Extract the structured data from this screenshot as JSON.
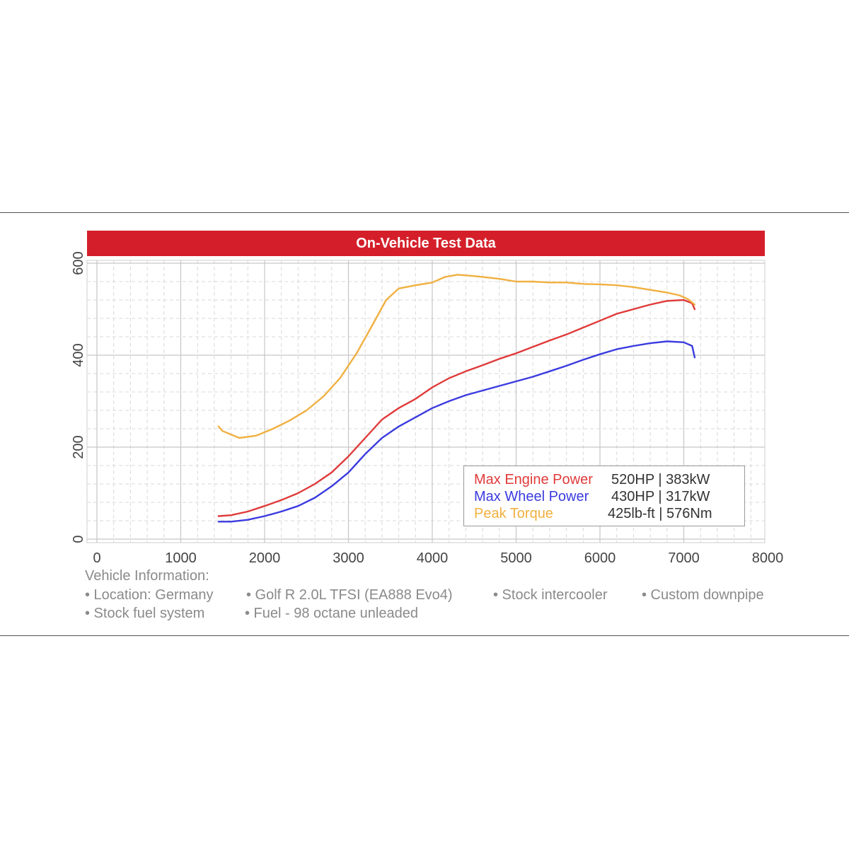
{
  "chart_data": {
    "type": "line",
    "title": "On-Vehicle Test Data",
    "xlim": [
      0,
      8000
    ],
    "ylim": [
      0,
      600
    ],
    "x_ticks": [
      "0",
      "1000",
      "2000",
      "3000",
      "4000",
      "5000",
      "6000",
      "7000",
      "8000"
    ],
    "y_ticks": [
      "0",
      "200",
      "400",
      "600"
    ],
    "grid": true,
    "legend_position": "bottom-right",
    "series": [
      {
        "name": "Max Engine Power",
        "value_label": "520HP | 383kW",
        "color": "#e03a3a",
        "points": [
          [
            1450,
            50
          ],
          [
            1600,
            52
          ],
          [
            1800,
            60
          ],
          [
            2000,
            72
          ],
          [
            2200,
            85
          ],
          [
            2400,
            100
          ],
          [
            2600,
            120
          ],
          [
            2800,
            145
          ],
          [
            3000,
            180
          ],
          [
            3200,
            220
          ],
          [
            3400,
            260
          ],
          [
            3600,
            285
          ],
          [
            3800,
            305
          ],
          [
            4000,
            330
          ],
          [
            4200,
            350
          ],
          [
            4400,
            365
          ],
          [
            4600,
            378
          ],
          [
            4800,
            392
          ],
          [
            5000,
            404
          ],
          [
            5200,
            418
          ],
          [
            5400,
            432
          ],
          [
            5600,
            445
          ],
          [
            5800,
            460
          ],
          [
            6000,
            475
          ],
          [
            6200,
            490
          ],
          [
            6400,
            500
          ],
          [
            6600,
            510
          ],
          [
            6800,
            518
          ],
          [
            7000,
            520
          ],
          [
            7100,
            513
          ],
          [
            7130,
            500
          ]
        ]
      },
      {
        "name": "Max Wheel Power",
        "value_label": "430HP | 317kW",
        "color": "#3b3be0",
        "points": [
          [
            1450,
            38
          ],
          [
            1600,
            38
          ],
          [
            1800,
            42
          ],
          [
            2000,
            50
          ],
          [
            2200,
            60
          ],
          [
            2400,
            72
          ],
          [
            2600,
            90
          ],
          [
            2800,
            115
          ],
          [
            3000,
            145
          ],
          [
            3200,
            185
          ],
          [
            3400,
            220
          ],
          [
            3600,
            245
          ],
          [
            3800,
            265
          ],
          [
            4000,
            285
          ],
          [
            4200,
            300
          ],
          [
            4400,
            313
          ],
          [
            4600,
            323
          ],
          [
            4800,
            333
          ],
          [
            5000,
            343
          ],
          [
            5200,
            353
          ],
          [
            5400,
            365
          ],
          [
            5600,
            377
          ],
          [
            5800,
            390
          ],
          [
            6000,
            402
          ],
          [
            6200,
            413
          ],
          [
            6400,
            420
          ],
          [
            6600,
            426
          ],
          [
            6800,
            430
          ],
          [
            7000,
            428
          ],
          [
            7100,
            420
          ],
          [
            7130,
            395
          ]
        ]
      },
      {
        "name": "Peak Torque",
        "value_label": "425lb-ft | 576Nm",
        "color": "#f0b040",
        "points": [
          [
            1450,
            245
          ],
          [
            1500,
            235
          ],
          [
            1700,
            220
          ],
          [
            1900,
            225
          ],
          [
            2100,
            240
          ],
          [
            2300,
            258
          ],
          [
            2500,
            280
          ],
          [
            2700,
            310
          ],
          [
            2900,
            350
          ],
          [
            3100,
            405
          ],
          [
            3300,
            470
          ],
          [
            3450,
            520
          ],
          [
            3600,
            545
          ],
          [
            3800,
            552
          ],
          [
            4000,
            558
          ],
          [
            4150,
            570
          ],
          [
            4300,
            575
          ],
          [
            4500,
            572
          ],
          [
            4800,
            566
          ],
          [
            5000,
            560
          ],
          [
            5200,
            560
          ],
          [
            5400,
            558
          ],
          [
            5600,
            558
          ],
          [
            5800,
            555
          ],
          [
            6000,
            554
          ],
          [
            6200,
            552
          ],
          [
            6400,
            548
          ],
          [
            6600,
            542
          ],
          [
            6800,
            536
          ],
          [
            6950,
            530
          ],
          [
            7050,
            522
          ],
          [
            7130,
            510
          ]
        ]
      }
    ]
  },
  "vehicle_info": {
    "title": "Vehicle Information:",
    "bullets": [
      "• Location: Germany",
      "• Golf R 2.0L TFSI (EA888 Evo4)",
      "• Stock intercooler",
      "• Custom downpipe",
      "• Stock fuel system",
      "• Fuel - 98 octane unleaded"
    ]
  }
}
